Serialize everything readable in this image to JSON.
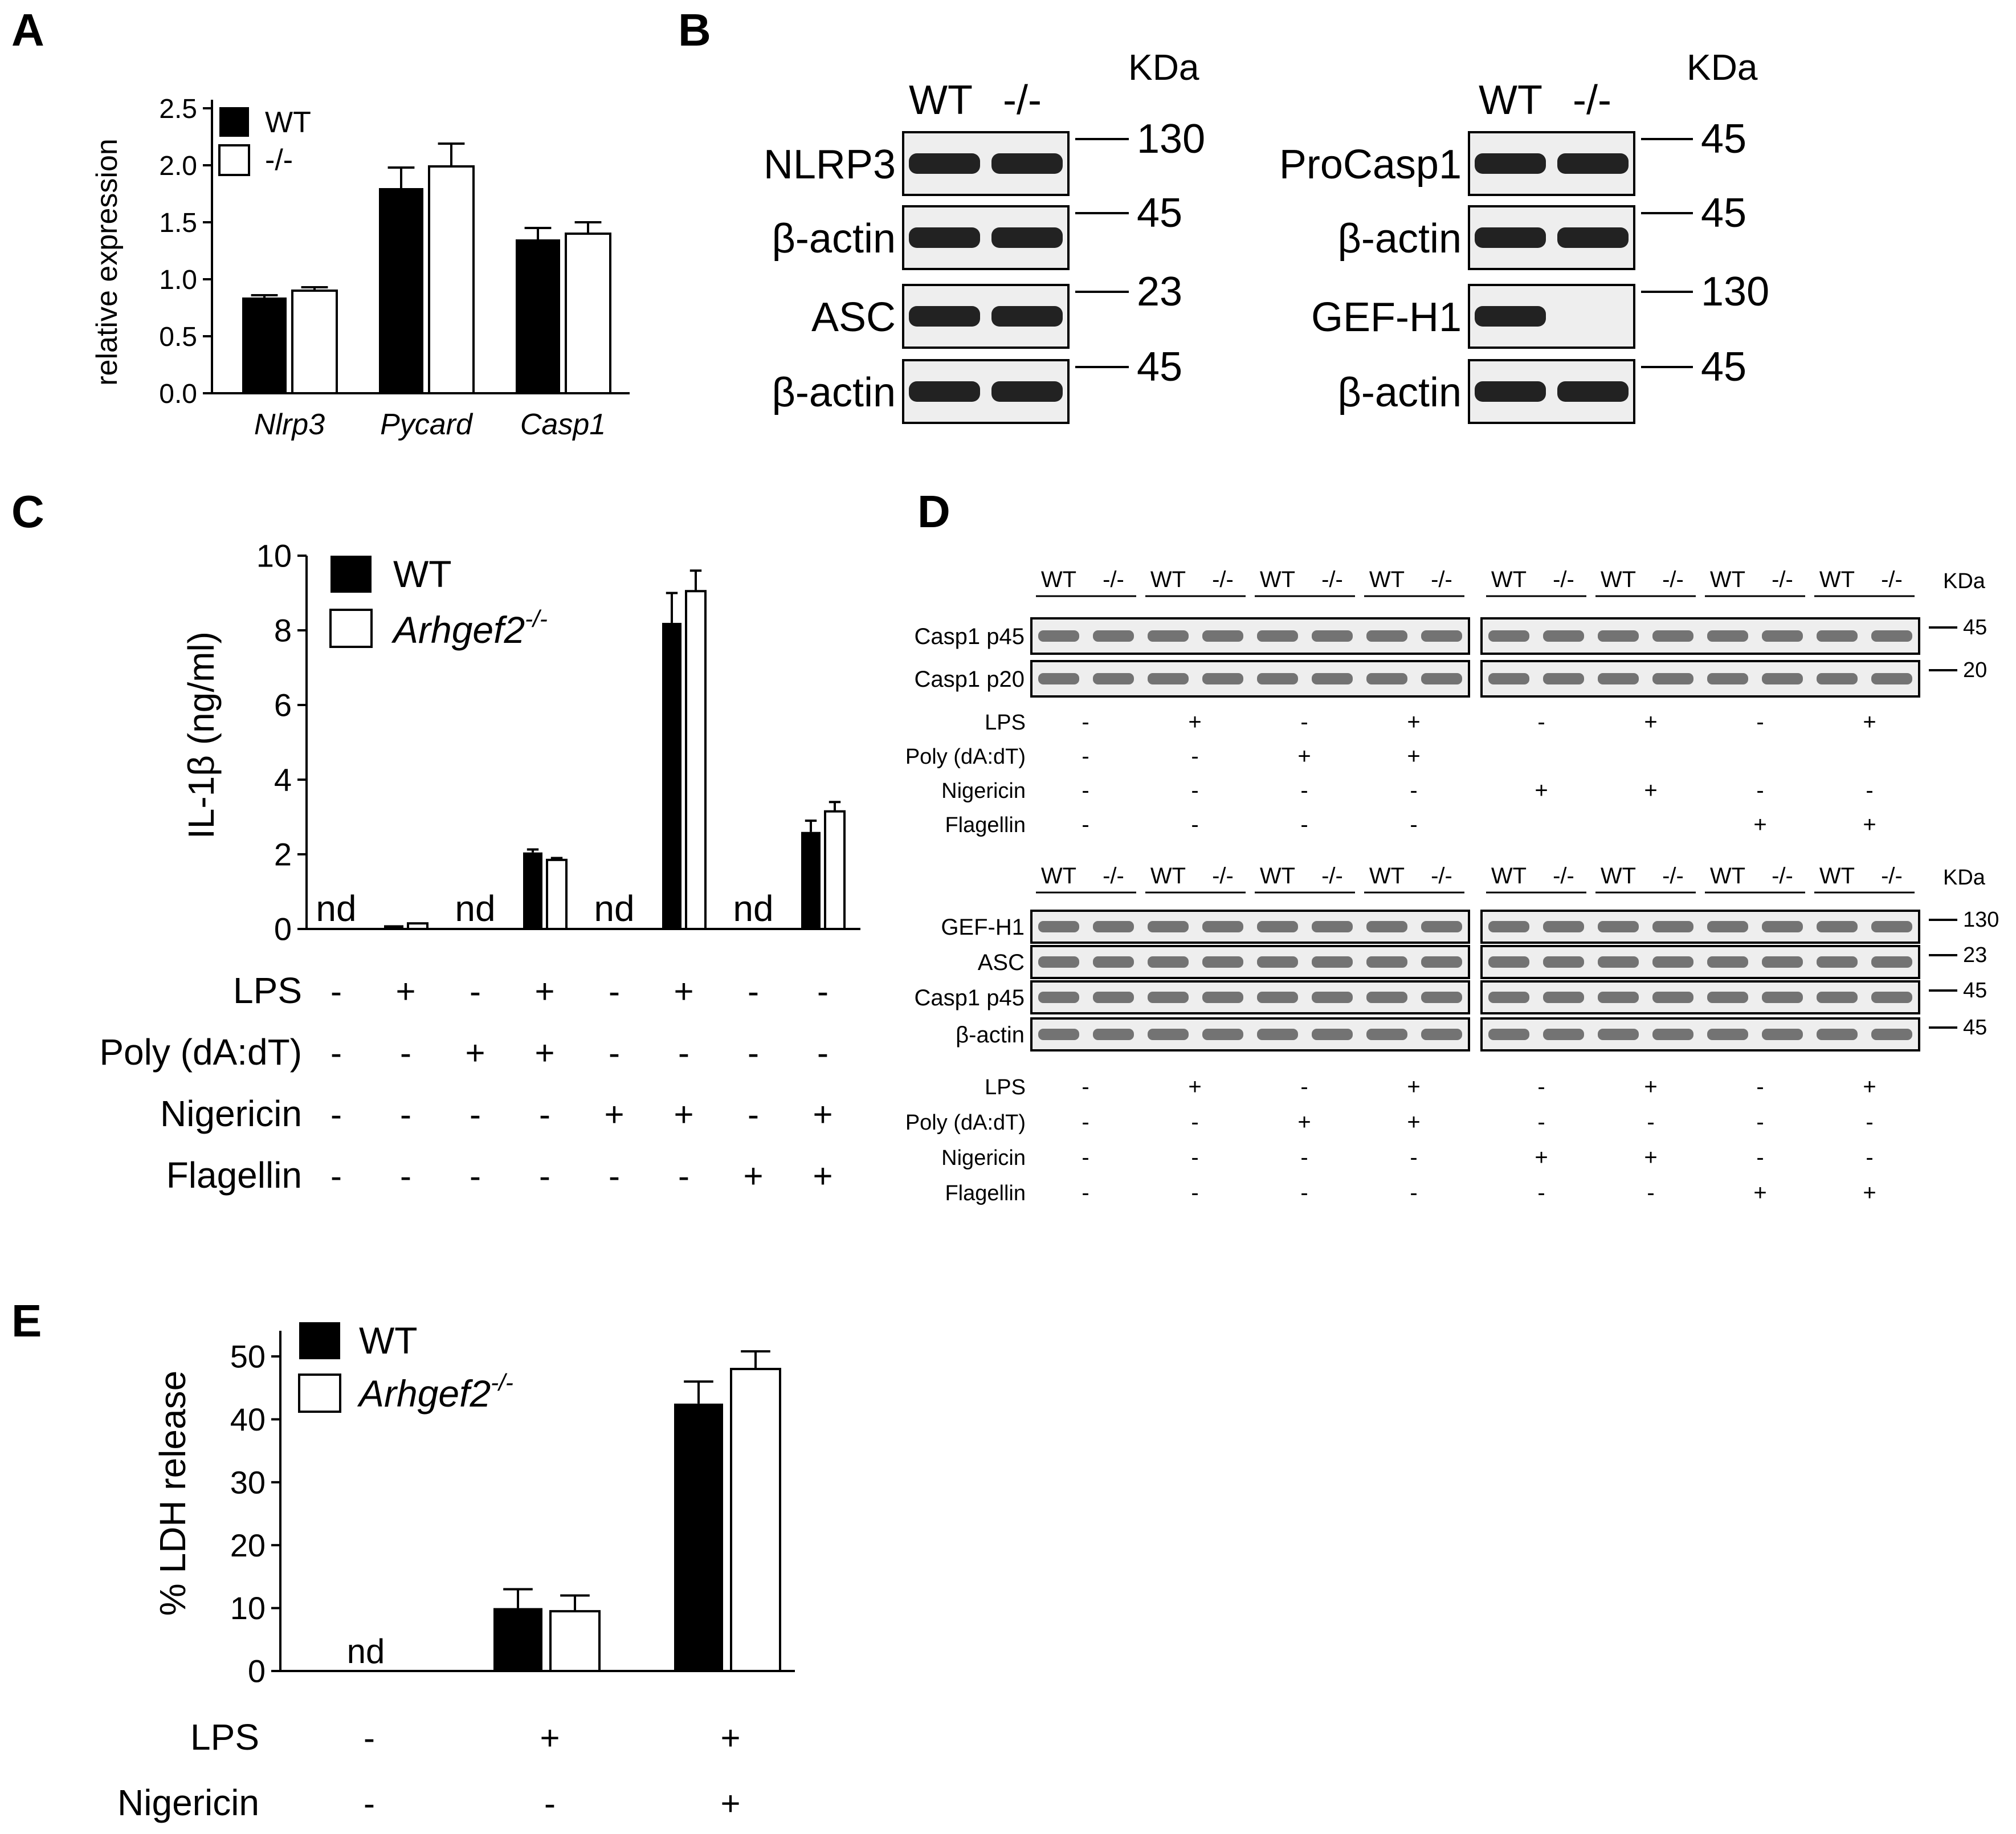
{
  "panels": {
    "A": {
      "letter": "A",
      "legend": [
        "WT",
        "-/-"
      ],
      "chart_data": {
        "type": "bar",
        "categories": [
          "Nlrp3",
          "Pycard",
          "Casp1"
        ],
        "series": [
          {
            "name": "WT",
            "values": [
              0.84,
              1.8,
              1.35
            ],
            "errors": [
              0.02,
              0.18,
              0.1
            ]
          },
          {
            "name": "-/-",
            "values": [
              0.9,
              1.99,
              1.4
            ],
            "errors": [
              0.03,
              0.2,
              0.1
            ]
          }
        ],
        "ylabel": "relative expression",
        "ylim": [
          0,
          2.5
        ],
        "yticks": [
          "0.0",
          "0.5",
          "1.0",
          "1.5",
          "2.0",
          "2.5"
        ],
        "legend_position": "top-left"
      }
    },
    "B": {
      "letter": "B",
      "left": {
        "kda_label": "KDa",
        "lanes": [
          "WT",
          "-/-"
        ],
        "rows": [
          {
            "label": "NLRP3",
            "mw": "130"
          },
          {
            "label": "β-actin",
            "mw": "45"
          },
          {
            "label": "ASC",
            "mw": "23"
          },
          {
            "label": "β-actin",
            "mw": "45"
          }
        ]
      },
      "right": {
        "kda_label": "KDa",
        "lanes": [
          "WT",
          "-/-"
        ],
        "rows": [
          {
            "label": "ProCasp1",
            "mw": "45"
          },
          {
            "label": "β-actin",
            "mw": "45"
          },
          {
            "label": "GEF-H1",
            "mw": "130"
          },
          {
            "label": "β-actin",
            "mw": "45"
          }
        ]
      }
    },
    "C": {
      "letter": "C",
      "legend": [
        "WT",
        "Arhgef2",
        "-/-"
      ],
      "nd_label": "nd",
      "chart_data": {
        "type": "bar",
        "categories": [
          "1",
          "2",
          "3",
          "4",
          "5",
          "6",
          "7",
          "8"
        ],
        "series": [
          {
            "name": "WT",
            "values": [
              0,
              0.1,
              0,
              2.05,
              0,
              8.2,
              0,
              2.6
            ],
            "errors": [
              0,
              0,
              0,
              0.08,
              0,
              0.8,
              0,
              0.3
            ]
          },
          {
            "name": "Arhgef2-/-",
            "values": [
              0,
              0.15,
              0,
              1.85,
              0,
              9.05,
              0,
              3.15
            ],
            "errors": [
              0,
              0,
              0,
              0.05,
              0,
              0.55,
              0,
              0.25
            ]
          }
        ],
        "nd_groups": [
          0,
          2,
          4,
          6
        ],
        "ylabel": "IL-1β (ng/ml)",
        "ylim": [
          0,
          10
        ],
        "yticks": [
          "0",
          "2",
          "4",
          "6",
          "8",
          "10"
        ],
        "legend_position": "top"
      },
      "treatments": [
        {
          "name": "LPS",
          "signs": [
            "-",
            "+",
            "-",
            "+",
            "-",
            "+",
            "-",
            "-"
          ]
        },
        {
          "name": "Poly (dA:dT)",
          "signs": [
            "-",
            "-",
            "+",
            "+",
            "-",
            "-",
            "-",
            "-"
          ]
        },
        {
          "name": "Nigericin",
          "signs": [
            "-",
            "-",
            "-",
            "-",
            "+",
            "+",
            "-",
            "+"
          ]
        },
        {
          "name": "Flagellin",
          "signs": [
            "-",
            "-",
            "-",
            "-",
            "-",
            "-",
            "+",
            "+"
          ]
        }
      ]
    },
    "D": {
      "letter": "D",
      "kda_label": "KDa",
      "lanes": [
        "WT",
        "-/-"
      ],
      "top": {
        "rows": [
          {
            "label": "Casp1 p45",
            "mw": "45"
          },
          {
            "label": "Casp1 p20",
            "mw": "20"
          }
        ],
        "treatments_left": [
          {
            "name": "LPS",
            "signs": [
              "-",
              "+",
              "-",
              "+"
            ]
          },
          {
            "name": "Poly (dA:dT)",
            "signs": [
              "-",
              "-",
              "+",
              "+"
            ]
          },
          {
            "name": "Nigericin",
            "signs": [
              "-",
              "-",
              "-",
              "-"
            ]
          },
          {
            "name": "Flagellin",
            "signs": [
              "-",
              "-",
              "-",
              "-"
            ]
          }
        ],
        "treatments_right": [
          {
            "name": "LPS",
            "signs": [
              "-",
              "+",
              "-",
              "+"
            ]
          },
          {
            "name": "Poly (dA:dT)",
            "signs": [
              "",
              "",
              "",
              ""
            ]
          },
          {
            "name": "Nigericin",
            "signs": [
              "+",
              "+",
              "-",
              "-"
            ]
          },
          {
            "name": "Flagellin",
            "signs": [
              "",
              "",
              "+",
              "+"
            ]
          }
        ]
      },
      "bottom": {
        "rows": [
          {
            "label": "GEF-H1",
            "mw": "130"
          },
          {
            "label": "ASC",
            "mw": "23"
          },
          {
            "label": "Casp1 p45",
            "mw": "45"
          },
          {
            "label": "β-actin",
            "mw": "45"
          }
        ],
        "treatments_left": [
          {
            "name": "LPS",
            "signs": [
              "-",
              "+",
              "-",
              "+"
            ]
          },
          {
            "name": "Poly (dA:dT)",
            "signs": [
              "-",
              "-",
              "+",
              "+"
            ]
          },
          {
            "name": "Nigericin",
            "signs": [
              "-",
              "-",
              "-",
              "-"
            ]
          },
          {
            "name": "Flagellin",
            "signs": [
              "-",
              "-",
              "-",
              "-"
            ]
          }
        ],
        "treatments_right": [
          {
            "name": "LPS",
            "signs": [
              "-",
              "+",
              "-",
              "+"
            ]
          },
          {
            "name": "Poly (dA:dT)",
            "signs": [
              "-",
              "-",
              "-",
              "-"
            ]
          },
          {
            "name": "Nigericin",
            "signs": [
              "+",
              "+",
              "-",
              "-"
            ]
          },
          {
            "name": "Flagellin",
            "signs": [
              "-",
              "-",
              "+",
              "+"
            ]
          }
        ]
      }
    },
    "E": {
      "letter": "E",
      "legend": [
        "WT",
        "Arhgef2",
        "-/-"
      ],
      "nd_label": "nd",
      "chart_data": {
        "type": "bar",
        "categories": [
          "1",
          "2",
          "3"
        ],
        "series": [
          {
            "name": "WT",
            "values": [
              0,
              10,
              42.5
            ],
            "errors": [
              0,
              3,
              3.5
            ]
          },
          {
            "name": "Arhgef2-/-",
            "values": [
              0,
              9.5,
              48
            ],
            "errors": [
              0,
              2.5,
              2.8
            ]
          }
        ],
        "nd_groups": [
          0
        ],
        "ylabel": "% LDH release",
        "ylim": [
          0,
          50
        ],
        "yticks": [
          "0",
          "10",
          "20",
          "30",
          "40",
          "50"
        ],
        "legend_position": "top"
      },
      "treatments": [
        {
          "name": "LPS",
          "signs": [
            "-",
            "+",
            "+"
          ]
        },
        {
          "name": "Nigericin",
          "signs": [
            "-",
            "-",
            "+"
          ]
        }
      ]
    }
  }
}
